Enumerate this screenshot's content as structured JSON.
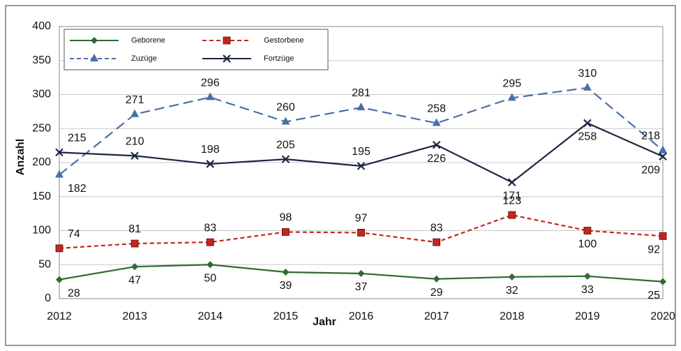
{
  "chart_data": {
    "type": "line",
    "x_label": "Jahr",
    "y_label": "Anzahl",
    "categories": [
      "2012",
      "2013",
      "2014",
      "2015",
      "2016",
      "2017",
      "2018",
      "2019",
      "2020"
    ],
    "series": [
      {
        "name": "Geborene",
        "color": "#2f6a2f",
        "dash": false,
        "marker": "diamond",
        "values": [
          28,
          47,
          50,
          39,
          37,
          29,
          32,
          33,
          25
        ]
      },
      {
        "name": "Gestorbene",
        "color": "#c0281e",
        "dash": true,
        "marker": "square",
        "values": [
          74,
          81,
          83,
          98,
          97,
          83,
          123,
          100,
          92
        ]
      },
      {
        "name": "Zuzüge",
        "color": "#4a6fa8",
        "dash": true,
        "marker": "triangle",
        "values": [
          182,
          271,
          296,
          260,
          281,
          258,
          295,
          310,
          218
        ]
      },
      {
        "name": "Fortzüge",
        "color": "#1c2642",
        "dash": false,
        "marker": "cross",
        "values": [
          215,
          210,
          198,
          205,
          195,
          226,
          171,
          258,
          209
        ]
      }
    ],
    "ylim": [
      0,
      400
    ],
    "yticks": [
      0,
      50,
      100,
      150,
      200,
      250,
      300,
      350,
      400
    ],
    "grid": true
  }
}
